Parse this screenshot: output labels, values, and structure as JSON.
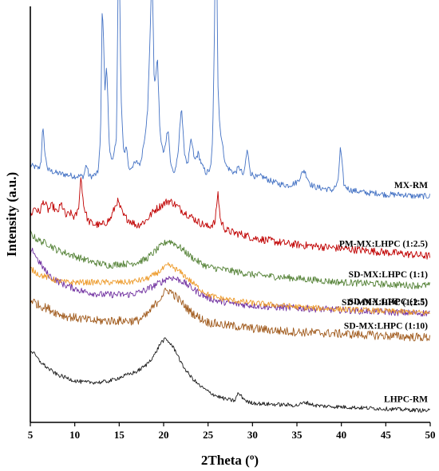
{
  "chart_data": {
    "type": "line",
    "xlabel": "2Theta (º)",
    "ylabel": "Intensity (a.u.)",
    "xlim": [
      5,
      50
    ],
    "xticks": [
      5,
      10,
      15,
      20,
      25,
      30,
      35,
      40,
      45,
      50
    ],
    "yticks": "none",
    "grid": false,
    "legend": "inline labels at right of each trace",
    "series": [
      {
        "name": "MX-RM",
        "color": "#4472C4",
        "offset": 120,
        "noise": 0.6,
        "points": [
          [
            5,
            45
          ],
          [
            5.5,
            44
          ],
          [
            6,
            43
          ],
          [
            6.2,
            48
          ],
          [
            6.4,
            70
          ],
          [
            6.7,
            50
          ],
          [
            7,
            42
          ],
          [
            8,
            40
          ],
          [
            9,
            39
          ],
          [
            10,
            38
          ],
          [
            11,
            38
          ],
          [
            11.3,
            46
          ],
          [
            11.6,
            38
          ],
          [
            12,
            38
          ],
          [
            12.6,
            40
          ],
          [
            12.9,
            62
          ],
          [
            13.1,
            152
          ],
          [
            13.4,
            95
          ],
          [
            13.6,
            110
          ],
          [
            13.9,
            55
          ],
          [
            14.3,
            48
          ],
          [
            14.7,
            62
          ],
          [
            14.95,
            210
          ],
          [
            15.2,
            90
          ],
          [
            15.5,
            52
          ],
          [
            15.8,
            58
          ],
          [
            16.1,
            42
          ],
          [
            16.5,
            45
          ],
          [
            17,
            47
          ],
          [
            17.4,
            46
          ],
          [
            17.9,
            65
          ],
          [
            18.2,
            80
          ],
          [
            18.5,
            135
          ],
          [
            18.7,
            175
          ],
          [
            18.95,
            95
          ],
          [
            19.3,
            115
          ],
          [
            19.6,
            65
          ],
          [
            20,
            52
          ],
          [
            20.5,
            70
          ],
          [
            20.8,
            45
          ],
          [
            21.2,
            40
          ],
          [
            21.6,
            50
          ],
          [
            22,
            85
          ],
          [
            22.3,
            55
          ],
          [
            22.7,
            45
          ],
          [
            23.1,
            62
          ],
          [
            23.5,
            48
          ],
          [
            23.9,
            53
          ],
          [
            24.3,
            45
          ],
          [
            24.8,
            40
          ],
          [
            25.3,
            43
          ],
          [
            25.5,
            60
          ],
          [
            25.7,
            120
          ],
          [
            25.9,
            235
          ],
          [
            26.1,
            100
          ],
          [
            26.3,
            72
          ],
          [
            26.7,
            55
          ],
          [
            27,
            45
          ],
          [
            27.5,
            42
          ],
          [
            28,
            40
          ],
          [
            28.5,
            44
          ],
          [
            29,
            38
          ],
          [
            29.4,
            55
          ],
          [
            29.8,
            40
          ],
          [
            30.5,
            37
          ],
          [
            31,
            38
          ],
          [
            32,
            35
          ],
          [
            33,
            33
          ],
          [
            34,
            32
          ],
          [
            35,
            34
          ],
          [
            35.8,
            42
          ],
          [
            36.5,
            33
          ],
          [
            37,
            31
          ],
          [
            38,
            30
          ],
          [
            39,
            29
          ],
          [
            39.6,
            33
          ],
          [
            39.9,
            57
          ],
          [
            40.3,
            32
          ],
          [
            41,
            29
          ],
          [
            42,
            28
          ],
          [
            43,
            27
          ],
          [
            44,
            27
          ],
          [
            45,
            26
          ],
          [
            46,
            26
          ],
          [
            47,
            26
          ],
          [
            48,
            25
          ],
          [
            49,
            25
          ],
          [
            50,
            25
          ]
        ]
      },
      {
        "name": "PM-MX:LHPC (1:2.5)",
        "color": "#C00000",
        "offset": 84,
        "noise": 0.8,
        "points": [
          [
            5,
            48
          ],
          [
            5.5,
            54
          ],
          [
            6,
            50
          ],
          [
            6.5,
            58
          ],
          [
            7,
            52
          ],
          [
            7.5,
            55
          ],
          [
            8,
            50
          ],
          [
            8.5,
            56
          ],
          [
            9,
            48
          ],
          [
            9.5,
            50
          ],
          [
            10,
            47
          ],
          [
            10.4,
            52
          ],
          [
            10.7,
            74
          ],
          [
            11,
            55
          ],
          [
            11.5,
            45
          ],
          [
            12,
            43
          ],
          [
            13,
            42
          ],
          [
            14,
            46
          ],
          [
            14.8,
            58
          ],
          [
            15.5,
            48
          ],
          [
            16,
            46
          ],
          [
            17,
            42
          ],
          [
            18,
            45
          ],
          [
            19,
            52
          ],
          [
            20,
            56
          ],
          [
            20.5,
            58
          ],
          [
            21,
            57
          ],
          [
            22,
            52
          ],
          [
            23,
            48
          ],
          [
            24,
            44
          ],
          [
            25,
            41
          ],
          [
            25.8,
            44
          ],
          [
            26.1,
            64
          ],
          [
            26.4,
            45
          ],
          [
            27,
            39
          ],
          [
            28,
            37
          ],
          [
            29,
            36
          ],
          [
            30,
            34
          ],
          [
            32,
            32
          ],
          [
            34,
            30
          ],
          [
            36,
            29
          ],
          [
            38,
            28
          ],
          [
            40,
            27
          ],
          [
            42,
            26
          ],
          [
            44,
            25
          ],
          [
            46,
            24
          ],
          [
            48,
            23
          ],
          [
            50,
            22
          ]
        ]
      },
      {
        "name": "SD-MX:LHPC (1:1)",
        "color": "#538135",
        "offset": 66,
        "noise": 0.7,
        "points": [
          [
            5,
            55
          ],
          [
            5.5,
            52
          ],
          [
            6,
            50
          ],
          [
            7,
            48
          ],
          [
            8,
            44
          ],
          [
            9,
            42
          ],
          [
            10,
            40
          ],
          [
            11,
            38
          ],
          [
            12,
            36
          ],
          [
            13,
            35
          ],
          [
            14,
            34
          ],
          [
            15,
            35
          ],
          [
            16,
            35
          ],
          [
            17,
            36
          ],
          [
            18,
            38
          ],
          [
            19,
            43
          ],
          [
            20,
            48
          ],
          [
            20.5,
            50
          ],
          [
            21,
            49
          ],
          [
            22,
            45
          ],
          [
            23,
            40
          ],
          [
            24,
            36
          ],
          [
            25,
            33
          ],
          [
            26,
            32
          ],
          [
            27,
            31
          ],
          [
            28,
            30
          ],
          [
            30,
            28
          ],
          [
            32,
            27
          ],
          [
            34,
            26
          ],
          [
            36,
            25
          ],
          [
            38,
            24
          ],
          [
            40,
            23
          ],
          [
            42,
            22.5
          ],
          [
            44,
            22
          ],
          [
            46,
            21.5
          ],
          [
            48,
            21
          ],
          [
            50,
            21
          ]
        ]
      },
      {
        "name": "SD-MX:LHPC (1:2.5)",
        "color": "#7030A0",
        "offset": 52,
        "noise": 0.7,
        "points": [
          [
            5,
            54
          ],
          [
            5.3,
            58
          ],
          [
            5.8,
            52
          ],
          [
            6.5,
            46
          ],
          [
            7,
            42
          ],
          [
            8,
            38
          ],
          [
            9,
            35
          ],
          [
            10,
            33
          ],
          [
            11,
            31
          ],
          [
            12,
            30
          ],
          [
            13,
            29
          ],
          [
            14,
            29
          ],
          [
            15,
            29
          ],
          [
            16,
            29
          ],
          [
            17,
            30
          ],
          [
            18,
            32
          ],
          [
            19,
            35
          ],
          [
            20,
            38
          ],
          [
            20.5,
            40
          ],
          [
            21,
            40
          ],
          [
            22,
            38
          ],
          [
            23,
            34
          ],
          [
            24,
            30
          ],
          [
            25,
            27
          ],
          [
            26,
            25
          ],
          [
            27,
            24
          ],
          [
            28,
            23
          ],
          [
            30,
            22
          ],
          [
            32,
            21
          ],
          [
            34,
            20.5
          ],
          [
            36,
            20
          ],
          [
            38,
            19.5
          ],
          [
            40,
            19
          ],
          [
            42,
            18.5
          ],
          [
            44,
            18
          ],
          [
            46,
            17.5
          ],
          [
            48,
            17
          ],
          [
            50,
            17
          ]
        ]
      },
      {
        "name": "SD-MX:LHPC (1:5)",
        "color": "#ED9A29",
        "offset": 34,
        "noise": 0.6,
        "points": [
          [
            5,
            64
          ],
          [
            5.5,
            62
          ],
          [
            6,
            60
          ],
          [
            7,
            58
          ],
          [
            8,
            56
          ],
          [
            9,
            55
          ],
          [
            10,
            55
          ],
          [
            11,
            55
          ],
          [
            12,
            55
          ],
          [
            13,
            55
          ],
          [
            14,
            55
          ],
          [
            15,
            55
          ],
          [
            16,
            55
          ],
          [
            17,
            56
          ],
          [
            18,
            57
          ],
          [
            19,
            60
          ],
          [
            20,
            64
          ],
          [
            20.5,
            66
          ],
          [
            21,
            65
          ],
          [
            22,
            61
          ],
          [
            23,
            56
          ],
          [
            24,
            51
          ],
          [
            25,
            47
          ],
          [
            26,
            45
          ],
          [
            27,
            44
          ],
          [
            28,
            43
          ],
          [
            30,
            41.5
          ],
          [
            32,
            40.5
          ],
          [
            34,
            39.5
          ],
          [
            36,
            38.5
          ],
          [
            38,
            38
          ],
          [
            40,
            37.5
          ],
          [
            42,
            37
          ],
          [
            44,
            36.5
          ],
          [
            46,
            36
          ],
          [
            48,
            35.5
          ],
          [
            50,
            35
          ]
        ]
      },
      {
        "name": "SD-MX:LHPC (1:10)",
        "color": "#A05A1C",
        "offset": 16,
        "noise": 0.9,
        "points": [
          [
            5,
            62
          ],
          [
            5.5,
            60
          ],
          [
            6,
            58
          ],
          [
            7,
            56
          ],
          [
            8,
            53
          ],
          [
            9,
            51
          ],
          [
            10,
            50
          ],
          [
            11,
            49
          ],
          [
            12,
            48
          ],
          [
            13,
            48
          ],
          [
            14,
            48
          ],
          [
            15,
            48
          ],
          [
            16,
            48
          ],
          [
            17,
            48
          ],
          [
            18,
            51
          ],
          [
            19,
            58
          ],
          [
            20,
            66
          ],
          [
            20.5,
            68
          ],
          [
            21,
            66
          ],
          [
            22,
            60
          ],
          [
            23,
            54
          ],
          [
            24,
            50
          ],
          [
            25,
            47
          ],
          [
            26,
            46
          ],
          [
            27,
            45
          ],
          [
            28,
            44.5
          ],
          [
            30,
            43
          ],
          [
            32,
            42
          ],
          [
            34,
            41
          ],
          [
            36,
            40.5
          ],
          [
            38,
            40
          ],
          [
            40,
            39.5
          ],
          [
            42,
            39
          ],
          [
            44,
            38.5
          ],
          [
            46,
            38
          ],
          [
            48,
            37.5
          ],
          [
            50,
            37
          ]
        ]
      },
      {
        "name": "LHPC-RM",
        "color": "#1a1a1a",
        "offset": 0,
        "noise": 0.4,
        "points": [
          [
            5,
            45
          ],
          [
            5.5,
            42
          ],
          [
            6,
            38
          ],
          [
            7,
            33
          ],
          [
            8,
            29
          ],
          [
            9,
            27
          ],
          [
            10,
            25
          ],
          [
            11,
            24
          ],
          [
            12,
            24
          ],
          [
            13,
            24
          ],
          [
            14,
            25
          ],
          [
            15,
            27
          ],
          [
            16,
            29
          ],
          [
            17,
            31
          ],
          [
            18,
            35
          ],
          [
            19,
            42
          ],
          [
            19.7,
            50
          ],
          [
            20.2,
            52
          ],
          [
            20.8,
            49
          ],
          [
            21.5,
            43
          ],
          [
            22,
            36
          ],
          [
            23,
            28
          ],
          [
            24,
            22
          ],
          [
            25,
            18
          ],
          [
            26,
            15
          ],
          [
            27,
            13
          ],
          [
            28,
            12
          ],
          [
            28.4,
            17
          ],
          [
            28.9,
            14
          ],
          [
            29.5,
            11
          ],
          [
            31,
            10
          ],
          [
            33,
            9.5
          ],
          [
            35,
            9
          ],
          [
            36,
            11
          ],
          [
            37,
            9
          ],
          [
            38,
            8.5
          ],
          [
            40,
            8
          ],
          [
            42,
            7.5
          ],
          [
            44,
            7
          ],
          [
            46,
            6.5
          ],
          [
            48,
            6
          ],
          [
            50,
            5.5
          ]
        ]
      }
    ]
  }
}
